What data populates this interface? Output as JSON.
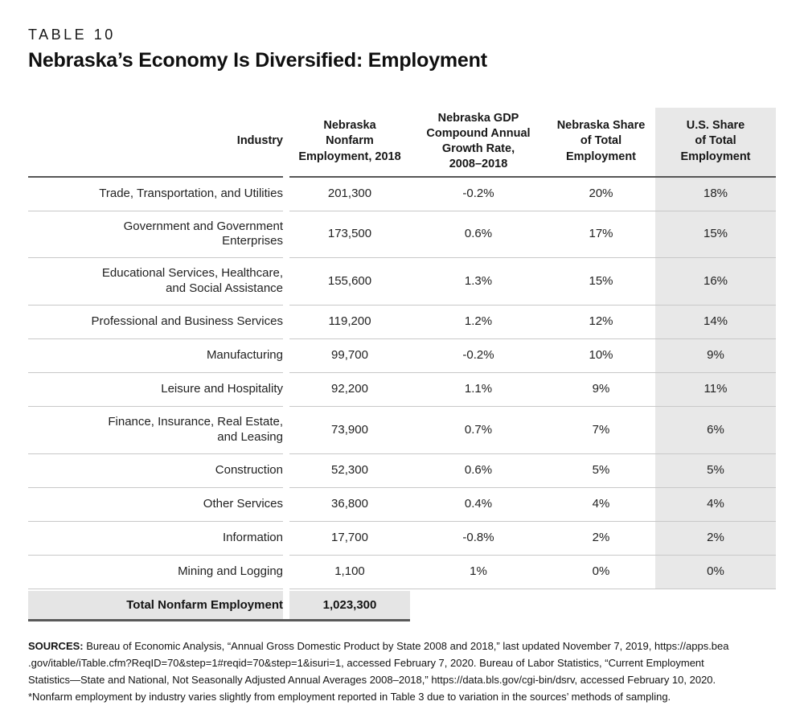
{
  "header": {
    "eyebrow": "TABLE 10",
    "title": "Nebraska’s Economy Is Diversified: Employment"
  },
  "chart_data": {
    "type": "table",
    "table_number": "TABLE 10",
    "title": "Nebraska’s Economy Is Diversified: Employment",
    "highlighted_column": "U.S. Share of Total Employment",
    "columns": [
      {
        "id": "industry",
        "label": "Industry"
      },
      {
        "id": "nebraska_nonfarm_employment_2018",
        "label": [
          "Nebraska",
          "Nonfarm",
          "Employment, 2018"
        ]
      },
      {
        "id": "nebraska_gdp_cagr_2008_2018",
        "label": [
          "Nebraska GDP",
          "Compound Annual",
          "Growth Rate,",
          "2008–2018"
        ]
      },
      {
        "id": "nebraska_share_of_total_employment",
        "label": [
          "Nebraska Share",
          "of Total",
          "Employment"
        ]
      },
      {
        "id": "us_share_of_total_employment",
        "label": [
          "U.S. Share",
          "of Total",
          "Employment"
        ],
        "highlighted": true
      }
    ],
    "rows": [
      {
        "industry": "Trade, Transportation, and Utilities",
        "employment_2018": "201,300",
        "gdp_growth": "-0.2%",
        "ne_share": "20%",
        "us_share": "18%"
      },
      {
        "industry": [
          "Government and Government",
          "Enterprises"
        ],
        "employment_2018": "173,500",
        "gdp_growth": "0.6%",
        "ne_share": "17%",
        "us_share": "15%"
      },
      {
        "industry": [
          "Educational Services, Healthcare,",
          "and Social Assistance"
        ],
        "employment_2018": "155,600",
        "gdp_growth": "1.3%",
        "ne_share": "15%",
        "us_share": "16%"
      },
      {
        "industry": "Professional and Business Services",
        "employment_2018": "119,200",
        "gdp_growth": "1.2%",
        "ne_share": "12%",
        "us_share": "14%"
      },
      {
        "industry": "Manufacturing",
        "employment_2018": "99,700",
        "gdp_growth": "-0.2%",
        "ne_share": "10%",
        "us_share": "9%"
      },
      {
        "industry": "Leisure and Hospitality",
        "employment_2018": "92,200",
        "gdp_growth": "1.1%",
        "ne_share": "9%",
        "us_share": "11%"
      },
      {
        "industry": [
          "Finance, Insurance, Real Estate,",
          "and Leasing"
        ],
        "employment_2018": "73,900",
        "gdp_growth": "0.7%",
        "ne_share": "7%",
        "us_share": "6%"
      },
      {
        "industry": "Construction",
        "employment_2018": "52,300",
        "gdp_growth": "0.6%",
        "ne_share": "5%",
        "us_share": "5%"
      },
      {
        "industry": "Other Services",
        "employment_2018": "36,800",
        "gdp_growth": "0.4%",
        "ne_share": "4%",
        "us_share": "4%"
      },
      {
        "industry": "Information",
        "employment_2018": "17,700",
        "gdp_growth": "-0.8%",
        "ne_share": "2%",
        "us_share": "2%"
      },
      {
        "industry": "Mining and Logging",
        "employment_2018": "1,100",
        "gdp_growth": "1%",
        "ne_share": "0%",
        "us_share": "0%"
      }
    ],
    "total": {
      "label": "Total Nonfarm Employment",
      "value": "1,023,300"
    }
  },
  "footer": {
    "sources_label": "SOURCES:",
    "sources_lines": [
      "Bureau of Economic Analysis, “Annual Gross Domestic Product by State 2008 and 2018,” last updated November 7, 2019, https://apps.bea",
      ".gov/itable/iTable.cfm?ReqID=70&step=1#reqid=70&step=1&isuri=1, accessed February 7, 2020. Bureau of Labor Statistics, “Current Employment",
      "Statistics—State and National, Not Seasonally Adjusted Annual Averages 2008–2018,” https://data.bls.gov/cgi-bin/dsrv, accessed February 10, 2020."
    ],
    "note": "*Nonfarm employment by industry varies slightly from employment reported in Table 3 due to variation in the sources’ methods of sampling."
  },
  "colors": {
    "highlight_column_bg": "#e8e8e8",
    "total_band_bg": "#e5e5e5",
    "header_rule": "#565656",
    "row_rule": "#c8c8c8",
    "total_rule": "#595959",
    "text": "#1d1d1d"
  }
}
